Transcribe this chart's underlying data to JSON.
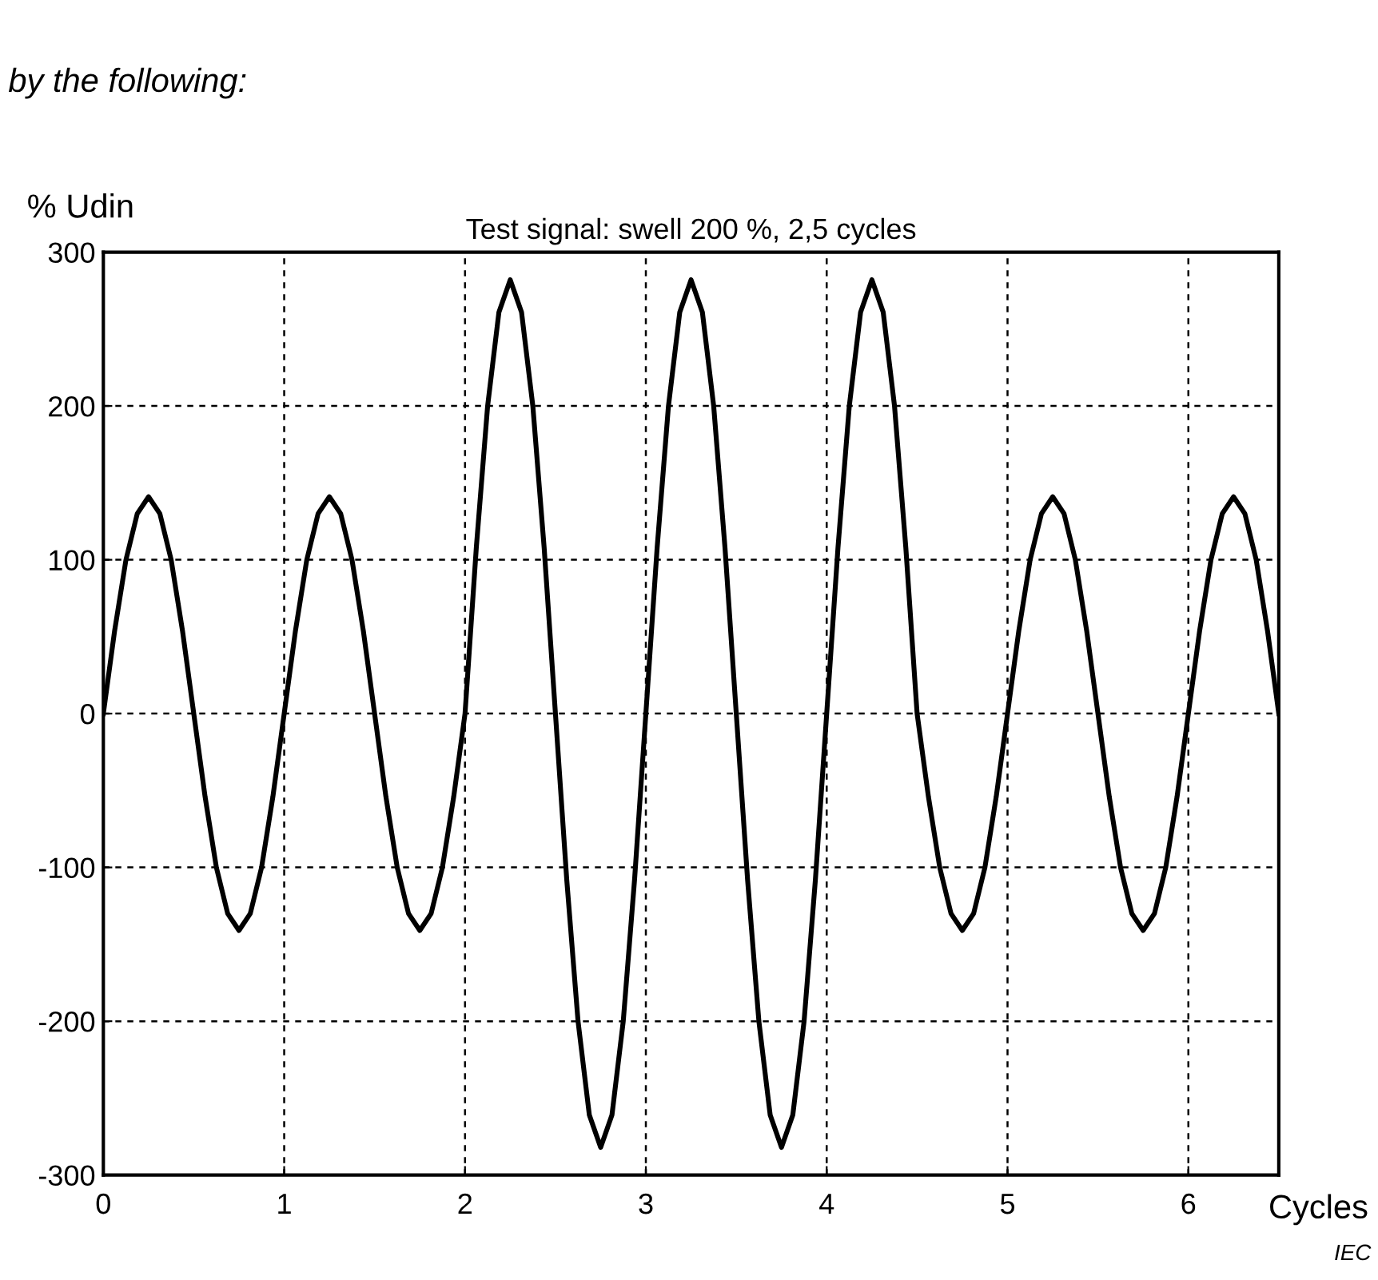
{
  "chart_data": {
    "type": "line",
    "title": "Test signal: swell 200 %, 2,5 cycles",
    "xlabel": "Cycles",
    "ylabel": "% Udin",
    "annotations": [
      "by the following:",
      "IEC"
    ],
    "series": [
      {
        "color": "#000000",
        "x": [
          0,
          0.0625,
          0.125,
          0.1875,
          0.25,
          0.3125,
          0.375,
          0.4375,
          0.5,
          0.5625,
          0.625,
          0.6875,
          0.75,
          0.8125,
          0.875,
          0.9375,
          1,
          1.0625,
          1.125,
          1.1875,
          1.25,
          1.3125,
          1.375,
          1.4375,
          1.5,
          1.5625,
          1.625,
          1.6875,
          1.75,
          1.8125,
          1.875,
          1.9375,
          2,
          2.0625,
          2.125,
          2.1875,
          2.25,
          2.3125,
          2.375,
          2.4375,
          2.5,
          2.5625,
          2.625,
          2.6875,
          2.75,
          2.8125,
          2.875,
          2.9375,
          3,
          3.0625,
          3.125,
          3.1875,
          3.25,
          3.3125,
          3.375,
          3.4375,
          3.5,
          3.5625,
          3.625,
          3.6875,
          3.75,
          3.8125,
          3.875,
          3.9375,
          4,
          4.0625,
          4.125,
          4.1875,
          4.25,
          4.3125,
          4.375,
          4.4375,
          4.5,
          4.5625,
          4.625,
          4.6875,
          4.75,
          4.8125,
          4.875,
          4.9375,
          5,
          5.0625,
          5.125,
          5.1875,
          5.25,
          5.3125,
          5.375,
          5.4375,
          5.5,
          5.5625,
          5.625,
          5.6875,
          5.75,
          5.8125,
          5.875,
          5.9375,
          6,
          6.0625,
          6.125,
          6.1875,
          6.25,
          6.3125,
          6.375,
          6.4375,
          6.5
        ],
        "values": [
          0,
          54,
          100,
          130,
          141,
          130,
          100,
          54,
          0,
          -54,
          -100,
          -130,
          -141,
          -130,
          -100,
          -54,
          0,
          54,
          100,
          130,
          141,
          130,
          100,
          54,
          0,
          -54,
          -100,
          -130,
          -141,
          -130,
          -100,
          -54,
          0,
          108,
          200,
          261,
          282,
          261,
          200,
          108,
          0,
          -108,
          -200,
          -261,
          -282,
          -261,
          -200,
          -108,
          0,
          108,
          200,
          261,
          282,
          261,
          200,
          108,
          0,
          -108,
          -200,
          -261,
          -282,
          -261,
          -200,
          -108,
          0,
          108,
          200,
          261,
          282,
          261,
          200,
          108,
          0,
          -54,
          -100,
          -130,
          -141,
          -130,
          -100,
          -54,
          0,
          54,
          100,
          130,
          141,
          130,
          100,
          54,
          0,
          -54,
          -100,
          -130,
          -141,
          -130,
          -100,
          -54,
          0,
          54,
          100,
          130,
          141,
          130,
          100,
          54,
          0
        ]
      }
    ],
    "xlim": [
      0,
      6.5
    ],
    "ylim": [
      -300,
      300
    ],
    "xticks": [
      0,
      1,
      2,
      3,
      4,
      5,
      6
    ],
    "yticks": [
      -300,
      -200,
      -100,
      0,
      100,
      200,
      300
    ],
    "grid": true,
    "line_style": "solid",
    "marker": "none"
  }
}
